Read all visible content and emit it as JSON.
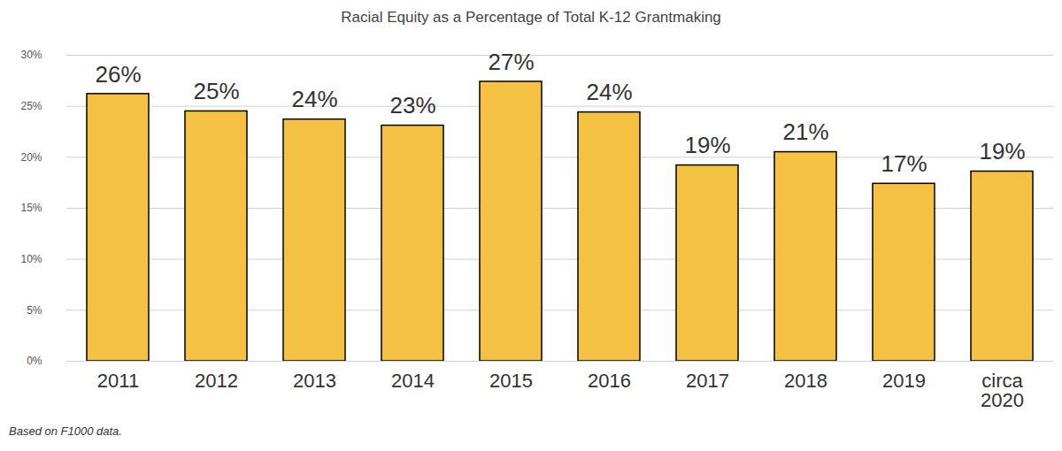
{
  "chart_data": {
    "type": "bar",
    "title": "Racial Equity as a Percentage of Total K-12 Grantmaking",
    "caption": "Based on F1000 data.",
    "categories": [
      "2011",
      "2012",
      "2013",
      "2014",
      "2015",
      "2016",
      "2017",
      "2018",
      "2019",
      "circa 2020"
    ],
    "values": [
      26.2,
      24.5,
      23.7,
      23.1,
      27.4,
      24.4,
      19.2,
      20.5,
      17.4,
      18.6
    ],
    "value_labels": [
      "26%",
      "25%",
      "24%",
      "23%",
      "27%",
      "24%",
      "19%",
      "21%",
      "17%",
      "19%"
    ],
    "data_labels": true,
    "color": "#f4c142",
    "ylim": [
      0,
      30
    ],
    "yticks": [
      {
        "value": 0,
        "label": "0%"
      },
      {
        "value": 5,
        "label": "5%"
      },
      {
        "value": 10,
        "label": "10%"
      },
      {
        "value": 15,
        "label": "15%"
      },
      {
        "value": 20,
        "label": "20%"
      },
      {
        "value": 25,
        "label": "25%"
      },
      {
        "value": 30,
        "label": "30%"
      }
    ],
    "grid": true
  }
}
